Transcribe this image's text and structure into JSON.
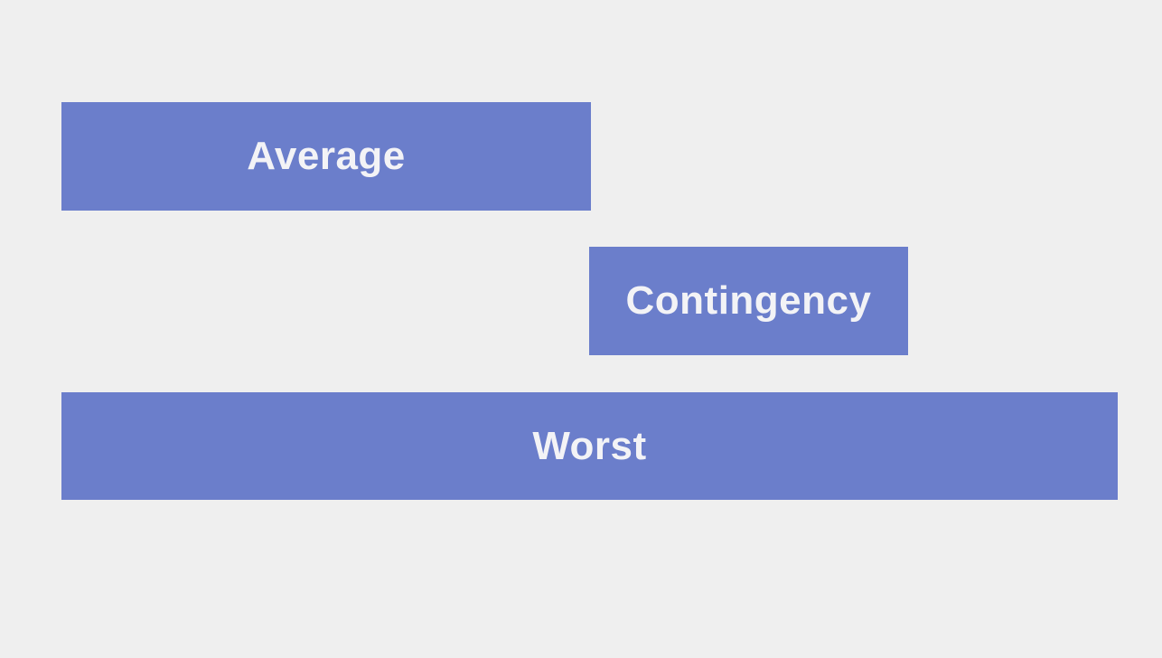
{
  "bars": {
    "average": {
      "label": "Average"
    },
    "contingency": {
      "label": "Contingency"
    },
    "worst": {
      "label": "Worst"
    }
  },
  "colors": {
    "bar_fill": "#6b7ecb",
    "bar_text": "#f3f3f6",
    "background": "#efefef"
  }
}
